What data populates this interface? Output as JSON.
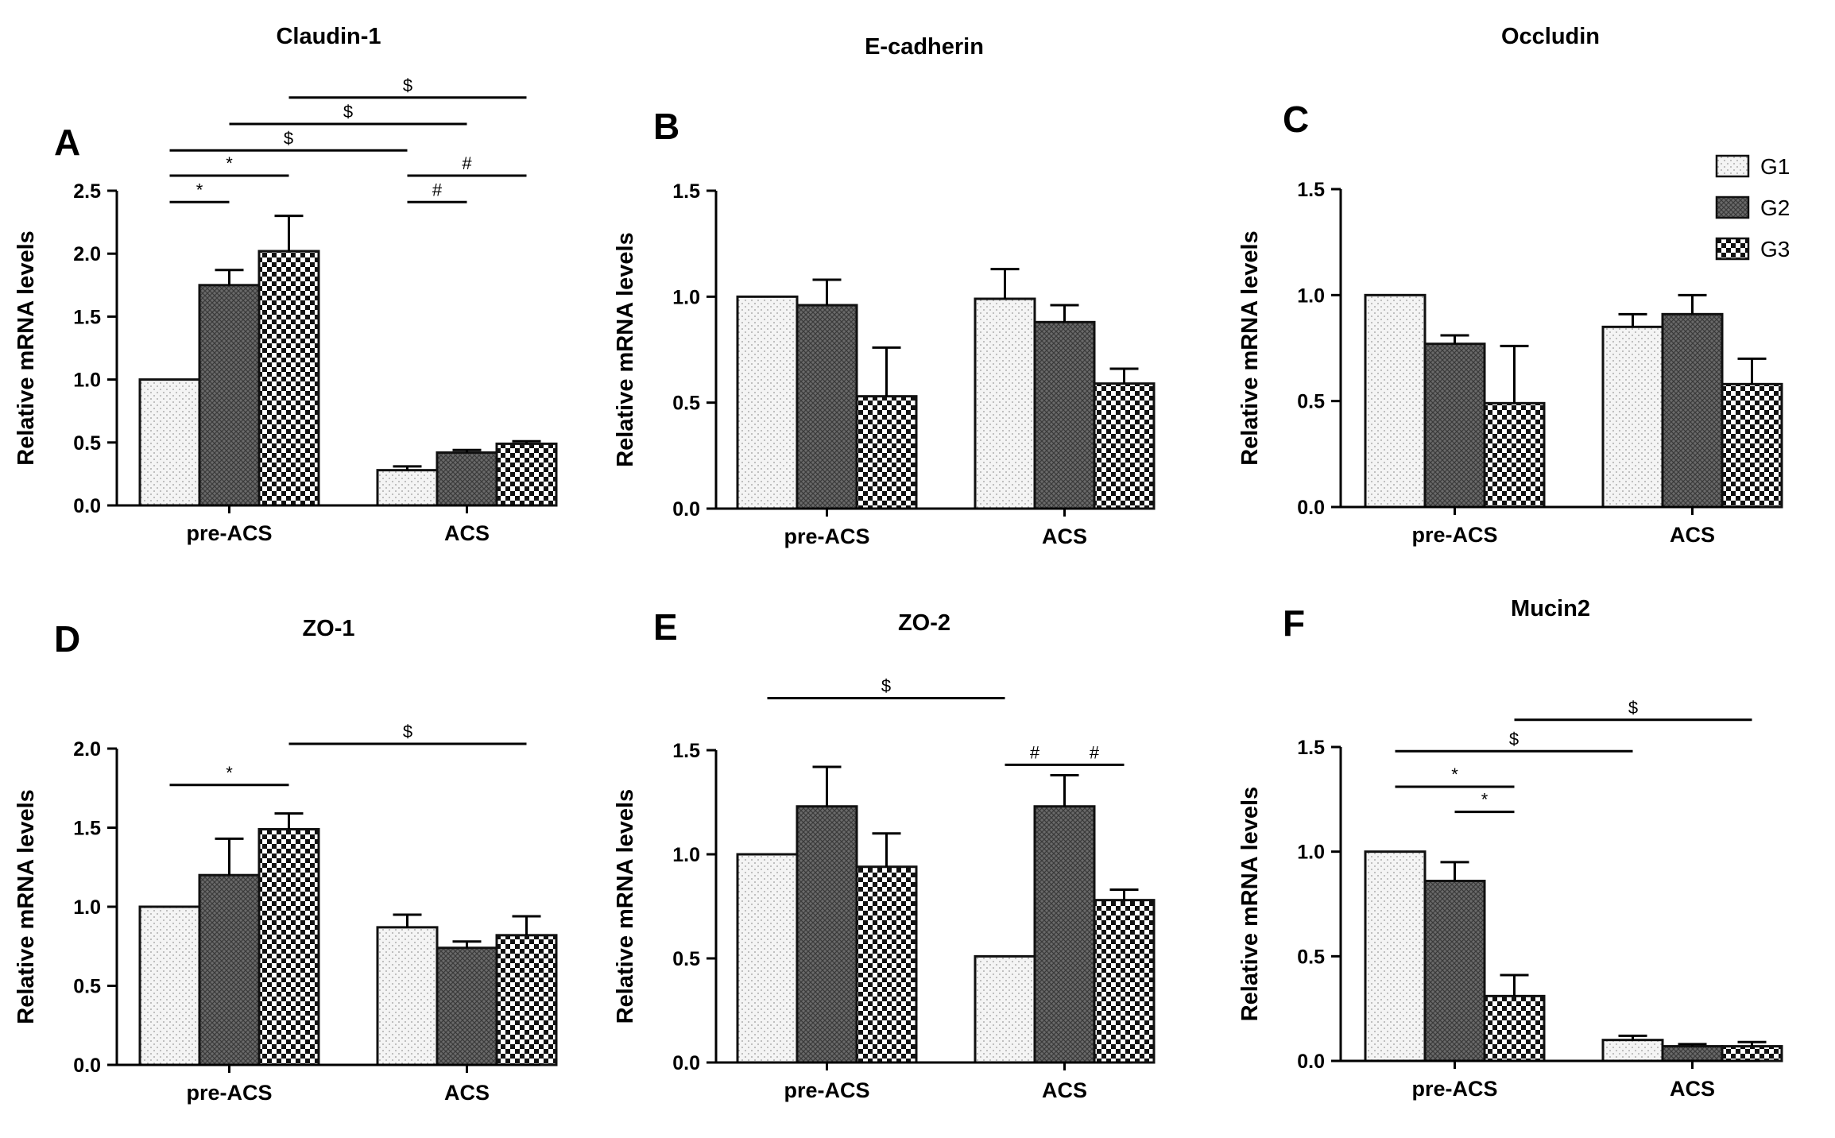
{
  "colors": {
    "axis": "#000000",
    "bar_stroke": "#111111",
    "g1_fill": "#f4f4f4",
    "g1_dot": "#9a9a9a",
    "g2_fill": "#6a6a6a",
    "g3_fill": "#ffffff"
  },
  "legend": {
    "entries": [
      "G1",
      "G2",
      "G3"
    ],
    "placement": "top-right of panel C"
  },
  "chart_data": [
    {
      "panel": "A",
      "title": "Claudin-1",
      "type": "bar",
      "ylabel": "Relative mRNA levels",
      "xlabel": "",
      "categories": [
        "pre-ACS",
        "ACS"
      ],
      "ylim": [
        0,
        2.5
      ],
      "yticks": [
        "0.0",
        "0.5",
        "1.0",
        "1.5",
        "2.0",
        "2.5"
      ],
      "series": [
        {
          "name": "G1",
          "values": [
            1.0,
            0.28
          ],
          "errors": [
            0,
            0.03
          ]
        },
        {
          "name": "G2",
          "values": [
            1.75,
            0.42
          ],
          "errors": [
            0.12,
            0.02
          ]
        },
        {
          "name": "G3",
          "values": [
            2.02,
            0.49
          ],
          "errors": [
            0.28,
            0.02
          ]
        }
      ],
      "annotations": [
        {
          "text": "*",
          "from": [
            0,
            0
          ],
          "to": [
            0,
            1
          ],
          "level": 2.41
        },
        {
          "text": "*",
          "from": [
            0,
            0
          ],
          "to": [
            0,
            2
          ],
          "level": 2.62
        },
        {
          "text": "$",
          "from": [
            0,
            0
          ],
          "to": [
            1,
            0
          ],
          "level": 2.82
        },
        {
          "text": "$",
          "from": [
            0,
            1
          ],
          "to": [
            1,
            1
          ],
          "level": 3.03
        },
        {
          "text": "$",
          "from": [
            0,
            2
          ],
          "to": [
            1,
            2
          ],
          "level": 3.24
        },
        {
          "text": "#",
          "from": [
            1,
            0
          ],
          "to": [
            1,
            1
          ],
          "level": 2.41
        },
        {
          "text": "#",
          "from": [
            1,
            0
          ],
          "to": [
            1,
            2
          ],
          "level": 2.62
        }
      ]
    },
    {
      "panel": "B",
      "title": "E-cadherin",
      "type": "bar",
      "ylabel": "Relative mRNA levels",
      "xlabel": "",
      "categories": [
        "pre-ACS",
        "ACS"
      ],
      "ylim": [
        0,
        1.5
      ],
      "yticks": [
        "0.0",
        "0.5",
        "1.0",
        "1.5"
      ],
      "series": [
        {
          "name": "G1",
          "values": [
            1.0,
            0.99
          ],
          "errors": [
            0,
            0.14
          ]
        },
        {
          "name": "G2",
          "values": [
            0.96,
            0.88
          ],
          "errors": [
            0.12,
            0.08
          ]
        },
        {
          "name": "G3",
          "values": [
            0.53,
            0.59
          ],
          "errors": [
            0.23,
            0.07
          ]
        }
      ],
      "annotations": []
    },
    {
      "panel": "C",
      "title": "Occludin",
      "type": "bar",
      "ylabel": "Relative mRNA levels",
      "xlabel": "",
      "categories": [
        "pre-ACS",
        "ACS"
      ],
      "ylim": [
        0,
        1.5
      ],
      "yticks": [
        "0.0",
        "0.5",
        "1.0",
        "1.5"
      ],
      "series": [
        {
          "name": "G1",
          "values": [
            1.0,
            0.85
          ],
          "errors": [
            0,
            0.06
          ]
        },
        {
          "name": "G2",
          "values": [
            0.77,
            0.91
          ],
          "errors": [
            0.04,
            0.09
          ]
        },
        {
          "name": "G3",
          "values": [
            0.49,
            0.58
          ],
          "errors": [
            0.27,
            0.12
          ]
        }
      ],
      "annotations": []
    },
    {
      "panel": "D",
      "title": "ZO-1",
      "type": "bar",
      "ylabel": "Relative mRNA levels",
      "xlabel": "",
      "categories": [
        "pre-ACS",
        "ACS"
      ],
      "ylim": [
        0,
        2.0
      ],
      "yticks": [
        "0.0",
        "0.5",
        "1.0",
        "1.5",
        "2.0"
      ],
      "series": [
        {
          "name": "G1",
          "values": [
            1.0,
            0.87
          ],
          "errors": [
            0,
            0.08
          ]
        },
        {
          "name": "G2",
          "values": [
            1.2,
            0.74
          ],
          "errors": [
            0.23,
            0.04
          ]
        },
        {
          "name": "G3",
          "values": [
            1.49,
            0.82
          ],
          "errors": [
            0.1,
            0.12
          ]
        }
      ],
      "annotations": [
        {
          "text": "*",
          "from": [
            0,
            0
          ],
          "to": [
            0,
            2
          ],
          "level": 1.77
        },
        {
          "text": "$",
          "from": [
            0,
            2
          ],
          "to": [
            1,
            2
          ],
          "level": 2.03
        }
      ]
    },
    {
      "panel": "E",
      "title": "ZO-2",
      "type": "bar",
      "ylabel": "Relative mRNA levels",
      "xlabel": "",
      "categories": [
        "pre-ACS",
        "ACS"
      ],
      "ylim": [
        0,
        1.5
      ],
      "yticks": [
        "0.0",
        "0.5",
        "1.0",
        "1.5"
      ],
      "series": [
        {
          "name": "G1",
          "values": [
            1.0,
            0.51
          ],
          "errors": [
            0,
            0
          ]
        },
        {
          "name": "G2",
          "values": [
            1.23,
            1.23
          ],
          "errors": [
            0.19,
            0.15
          ]
        },
        {
          "name": "G3",
          "values": [
            0.94,
            0.78
          ],
          "errors": [
            0.16,
            0.05
          ]
        }
      ],
      "annotations": [
        {
          "text": "$",
          "from": [
            0,
            0
          ],
          "to": [
            1,
            0
          ],
          "level": 1.75
        },
        {
          "text": "#",
          "from": [
            1,
            0
          ],
          "to": [
            1,
            1
          ],
          "level": 1.43
        },
        {
          "text": "#",
          "from": [
            1,
            1
          ],
          "to": [
            1,
            2
          ],
          "level": 1.43
        }
      ]
    },
    {
      "panel": "F",
      "title": "Mucin2",
      "type": "bar",
      "ylabel": "Relative mRNA levels",
      "xlabel": "",
      "categories": [
        "pre-ACS",
        "ACS"
      ],
      "ylim": [
        0,
        1.5
      ],
      "yticks": [
        "0.0",
        "0.5",
        "1.0",
        "1.5"
      ],
      "series": [
        {
          "name": "G1",
          "values": [
            1.0,
            0.1
          ],
          "errors": [
            0,
            0.02
          ]
        },
        {
          "name": "G2",
          "values": [
            0.86,
            0.07
          ],
          "errors": [
            0.09,
            0.01
          ]
        },
        {
          "name": "G3",
          "values": [
            0.31,
            0.07
          ],
          "errors": [
            0.1,
            0.02
          ]
        }
      ],
      "annotations": [
        {
          "text": "*",
          "from": [
            0,
            1
          ],
          "to": [
            0,
            2
          ],
          "level": 1.19
        },
        {
          "text": "*",
          "from": [
            0,
            0
          ],
          "to": [
            0,
            2
          ],
          "level": 1.31
        },
        {
          "text": "$",
          "from": [
            0,
            0
          ],
          "to": [
            1,
            0
          ],
          "level": 1.48
        },
        {
          "text": "$",
          "from": [
            0,
            2
          ],
          "to": [
            1,
            2
          ],
          "level": 1.63
        }
      ]
    }
  ]
}
